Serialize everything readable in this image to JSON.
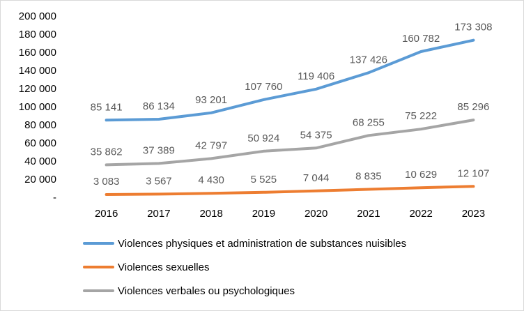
{
  "chart_data": {
    "type": "line",
    "title": "",
    "xlabel": "",
    "ylabel": "",
    "categories": [
      "2016",
      "2017",
      "2018",
      "2019",
      "2020",
      "2021",
      "2022",
      "2023"
    ],
    "ylim": [
      0,
      200000
    ],
    "y_ticks": [
      {
        "value": 0,
        "label": "-"
      },
      {
        "value": 20000,
        "label": "20 000"
      },
      {
        "value": 40000,
        "label": "40 000"
      },
      {
        "value": 60000,
        "label": "60 000"
      },
      {
        "value": 80000,
        "label": "80 000"
      },
      {
        "value": 100000,
        "label": "100 000"
      },
      {
        "value": 120000,
        "label": "120 000"
      },
      {
        "value": 140000,
        "label": "140 000"
      },
      {
        "value": 160000,
        "label": "160 000"
      },
      {
        "value": 180000,
        "label": "180 000"
      },
      {
        "value": 200000,
        "label": "200 000"
      }
    ],
    "grid": false,
    "legend_position": "bottom",
    "series": [
      {
        "name": "Violences physiques et administration de substances nuisibles",
        "color": "#5b9bd5",
        "values": [
          85141,
          86134,
          93201,
          107760,
          119406,
          137426,
          160782,
          173308
        ],
        "labels": [
          "85 141",
          "86 134",
          "93 201",
          "107 760",
          "119 406",
          "137 426",
          "160 782",
          "173 308"
        ]
      },
      {
        "name": "Violences sexuelles",
        "color": "#ed7d31",
        "values": [
          3083,
          3567,
          4430,
          5525,
          7044,
          8835,
          10629,
          12107
        ],
        "labels": [
          "3 083",
          "3 567",
          "4 430",
          "5 525",
          "7 044",
          "8 835",
          "10 629",
          "12 107"
        ]
      },
      {
        "name": "Violences verbales ou psychologiques",
        "color": "#a5a5a5",
        "values": [
          35862,
          37389,
          42797,
          50924,
          54375,
          68255,
          75222,
          85296
        ],
        "labels": [
          "35 862",
          "37 389",
          "42 797",
          "50 924",
          "54 375",
          "68 255",
          "75 222",
          "85 296"
        ]
      }
    ]
  }
}
